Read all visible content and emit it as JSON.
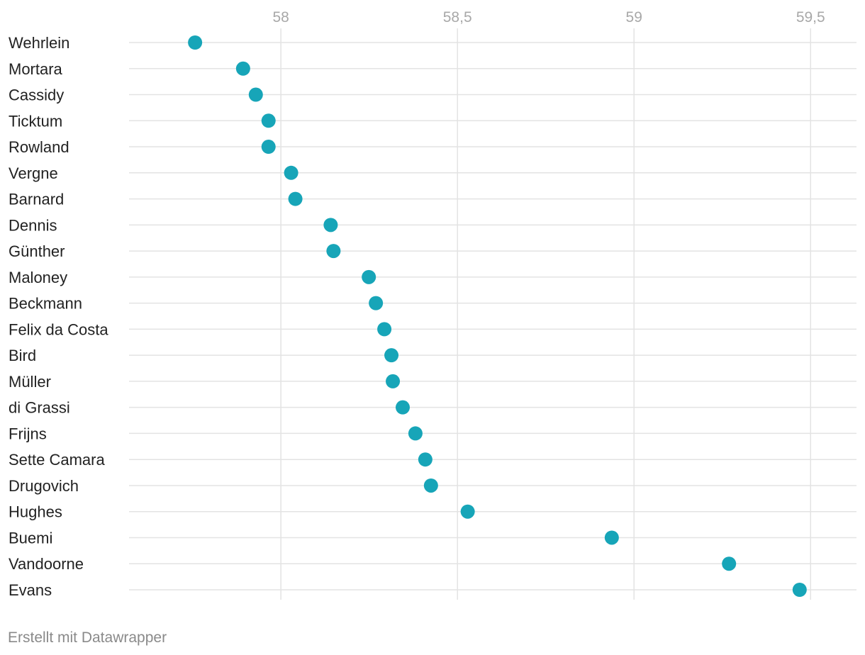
{
  "chart_data": {
    "type": "scatter",
    "title": "",
    "xlabel": "",
    "ylabel": "",
    "xlim": [
      57.57,
      59.63
    ],
    "x_ticks": [
      {
        "value": 58.0,
        "label": "58"
      },
      {
        "value": 58.5,
        "label": "58,5"
      },
      {
        "value": 59.0,
        "label": "59"
      },
      {
        "value": 59.5,
        "label": "59,5"
      }
    ],
    "grid": true,
    "legend": "none",
    "dot_color": "#17a5b8",
    "grid_color": "#e3e3e3",
    "tick_label_color": "#a8a8a8",
    "label_color": "#222222",
    "categories": [
      "Wehrlein",
      "Mortara",
      "Cassidy",
      "Ticktum",
      "Rowland",
      "Vergne",
      "Barnard",
      "Dennis",
      "Günther",
      "Maloney",
      "Beckmann",
      "Felix da Costa",
      "Bird",
      "Müller",
      "di Grassi",
      "Frijns",
      "Sette Camara",
      "Drugovich",
      "Hughes",
      "Buemi",
      "Vandoorne",
      "Evans"
    ],
    "values": [
      57.757,
      57.893,
      57.929,
      57.965,
      57.965,
      58.029,
      58.041,
      58.141,
      58.149,
      58.249,
      58.269,
      58.293,
      58.313,
      58.317,
      58.345,
      58.381,
      58.409,
      58.425,
      58.529,
      58.937,
      59.269,
      59.469
    ]
  },
  "footer": {
    "credit": "Erstellt mit Datawrapper"
  }
}
